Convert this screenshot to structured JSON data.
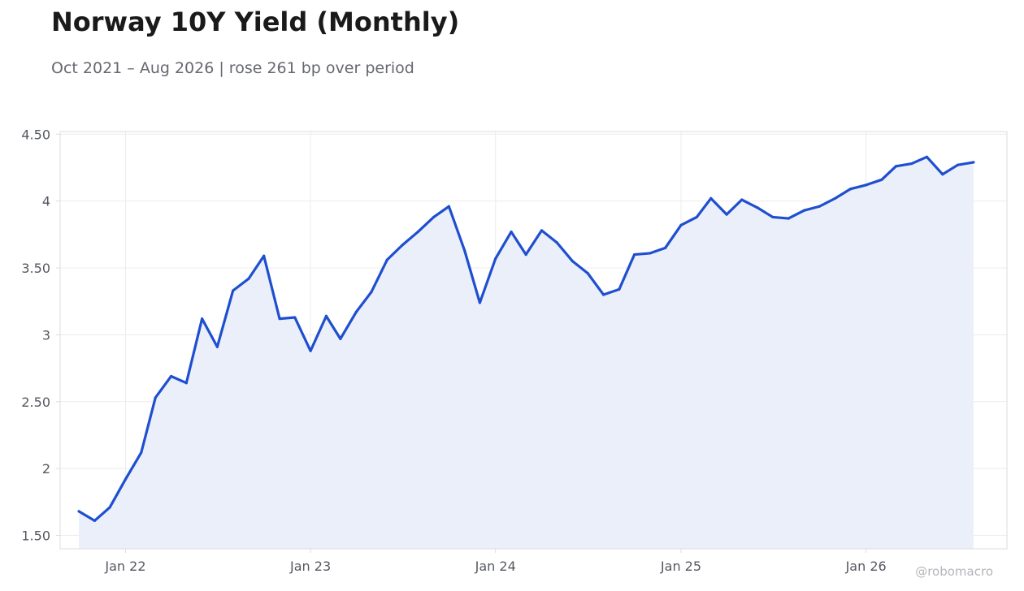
{
  "title": "Norway 10Y Yield (Monthly)",
  "subtitle": "Oct 2021 – Aug 2026 | rose 261 bp over period",
  "watermark": "@robomacro",
  "colors": {
    "line": "#1f4fcf",
    "area_fill": "#eaeffa",
    "grid": "#ececef",
    "frame": "#dcdde1",
    "tick_text": "#555860"
  },
  "chart_data": {
    "type": "area",
    "title": "Norway 10Y Yield (Monthly)",
    "subtitle": "Oct 2021 – Aug 2026 | rose 261 bp over period",
    "xlabel": "",
    "ylabel": "",
    "ylim": [
      1.4,
      4.52
    ],
    "xlim": [
      "2021-08-25",
      "2026-10-06"
    ],
    "grid": true,
    "legend": "none",
    "yticks": [
      {
        "value": 1.5,
        "label": "1.50"
      },
      {
        "value": 2.0,
        "label": "2"
      },
      {
        "value": 2.5,
        "label": "2.50"
      },
      {
        "value": 3.0,
        "label": "3"
      },
      {
        "value": 3.5,
        "label": "3.50"
      },
      {
        "value": 4.0,
        "label": "4"
      },
      {
        "value": 4.5,
        "label": "4.50"
      }
    ],
    "xticks": [
      {
        "value": "2022-01-01",
        "label": "Jan 22"
      },
      {
        "value": "2023-01-01",
        "label": "Jan 23"
      },
      {
        "value": "2024-01-01",
        "label": "Jan 24"
      },
      {
        "value": "2025-01-01",
        "label": "Jan 25"
      },
      {
        "value": "2026-01-01",
        "label": "Jan 26"
      }
    ],
    "series": [
      {
        "x": [
          "2021-10",
          "2021-11",
          "2021-12",
          "2022-01",
          "2022-02",
          "2022-03",
          "2022-04",
          "2022-05",
          "2022-06",
          "2022-07",
          "2022-08",
          "2022-09",
          "2022-10",
          "2022-11",
          "2022-12",
          "2023-01",
          "2023-02",
          "2023-03",
          "2023-04",
          "2023-05",
          "2023-06",
          "2023-07",
          "2023-08",
          "2023-09",
          "2023-10",
          "2023-11",
          "2023-12",
          "2024-01",
          "2024-02",
          "2024-03",
          "2024-04",
          "2024-05",
          "2024-06",
          "2024-07",
          "2024-08",
          "2024-09",
          "2024-10",
          "2024-11",
          "2024-12",
          "2025-01",
          "2025-02",
          "2025-03",
          "2025-04",
          "2025-05",
          "2025-06",
          "2025-07",
          "2025-08",
          "2025-09",
          "2025-10",
          "2025-11",
          "2025-12",
          "2026-01",
          "2026-02",
          "2026-03",
          "2026-04",
          "2026-05",
          "2026-06",
          "2026-07",
          "2026-08"
        ],
        "values": [
          1.68,
          1.61,
          1.71,
          1.92,
          2.12,
          2.53,
          2.69,
          2.64,
          3.12,
          2.91,
          3.33,
          3.42,
          3.59,
          3.12,
          3.13,
          2.88,
          3.14,
          2.97,
          3.17,
          3.32,
          3.56,
          3.67,
          3.77,
          3.88,
          3.96,
          3.63,
          3.24,
          3.57,
          3.77,
          3.6,
          3.78,
          3.69,
          3.55,
          3.46,
          3.3,
          3.34,
          3.6,
          3.61,
          3.65,
          3.82,
          3.88,
          4.02,
          3.9,
          4.01,
          3.95,
          3.88,
          3.87,
          3.93,
          3.96,
          4.02,
          4.09,
          4.12,
          4.16,
          4.26,
          4.28,
          4.33,
          4.2,
          4.27,
          4.29
        ]
      }
    ]
  }
}
